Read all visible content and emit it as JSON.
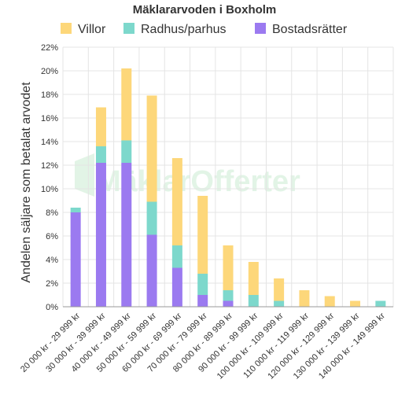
{
  "chart_data": {
    "type": "bar",
    "stacked": true,
    "title": "Mäklararvoden i Boxholm",
    "ylabel": "Andelen säljare som betalat arvodet",
    "xlabel": "",
    "ylim": [
      0,
      22
    ],
    "y_ticks": [
      "0%",
      "2%",
      "4%",
      "6%",
      "8%",
      "10%",
      "12%",
      "14%",
      "16%",
      "18%",
      "20%",
      "22%"
    ],
    "y_tick_values": [
      0,
      2,
      4,
      6,
      8,
      10,
      12,
      14,
      16,
      18,
      20,
      22
    ],
    "grid": true,
    "legend_position": "top",
    "categories": [
      "20 000 kr - 29 999 kr",
      "30 000 kr - 39 999 kr",
      "40 000 kr - 49 999 kr",
      "50 000 kr - 59 999 kr",
      "60 000 kr - 69 999 kr",
      "70 000 kr - 79 999 kr",
      "80 000 kr - 89 999 kr",
      "90 000 kr - 99 999 kr",
      "100 000 kr - 109 999 kr",
      "110 000 kr - 119 999 kr",
      "120 000 kr - 129 999 kr",
      "130 000 kr - 139 999 kr",
      "140 000 kr - 149 999 kr"
    ],
    "series": [
      {
        "name": "Bostadsrätter",
        "color": "#9b7af0",
        "values": [
          8.0,
          12.2,
          12.2,
          6.1,
          3.3,
          1.0,
          0.5,
          0,
          0,
          0,
          0,
          0,
          0
        ]
      },
      {
        "name": "Radhus/parhus",
        "color": "#7dd8cc",
        "values": [
          0.4,
          1.4,
          1.9,
          2.8,
          1.9,
          1.8,
          0.9,
          1.0,
          0.5,
          0,
          0,
          0,
          0.5
        ]
      },
      {
        "name": "Villor",
        "color": "#fdd77a",
        "values": [
          0,
          3.3,
          6.1,
          9.0,
          7.4,
          6.6,
          3.8,
          2.8,
          1.9,
          1.4,
          0.9,
          0.5,
          0
        ]
      }
    ],
    "legend_order": [
      2,
      1,
      0
    ]
  },
  "watermark": {
    "text": "MäklarOfferter"
  }
}
